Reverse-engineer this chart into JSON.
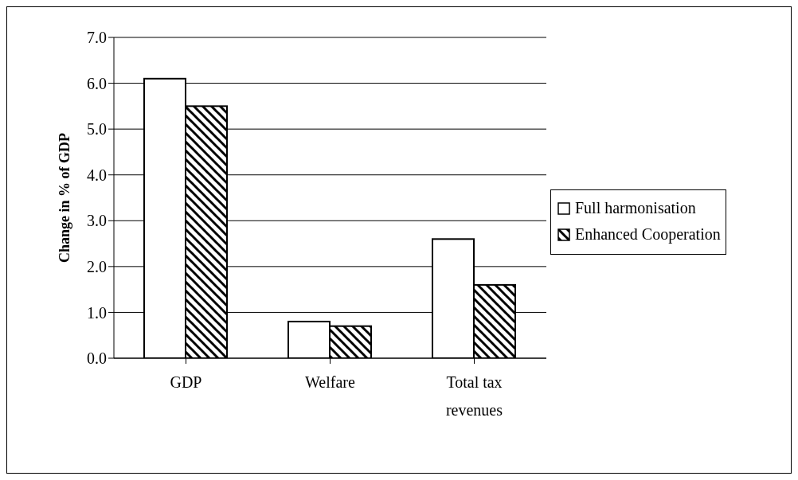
{
  "chart_data": {
    "type": "bar",
    "ylabel": "Change in % of GDP",
    "categories": [
      "GDP",
      "Welfare",
      "Total tax revenues"
    ],
    "series": [
      {
        "name": "Full harmonisation",
        "color": "#ffffff",
        "values": [
          6.1,
          0.8,
          2.6
        ]
      },
      {
        "name": "Enhanced Cooperation",
        "color": "#000000",
        "values": [
          5.5,
          0.7,
          1.6
        ]
      }
    ],
    "ylim": [
      0,
      7
    ],
    "yticks": [
      {
        "value": 0,
        "label": "0.0"
      },
      {
        "value": 1,
        "label": "1.0"
      },
      {
        "value": 2,
        "label": "2.0"
      },
      {
        "value": 3,
        "label": "3.0"
      },
      {
        "value": 4,
        "label": "4.0"
      },
      {
        "value": 5,
        "label": "5.0"
      },
      {
        "value": 6,
        "label": "6.0"
      },
      {
        "value": 7,
        "label": "7.0"
      }
    ],
    "grid": "y",
    "legend": "right"
  }
}
